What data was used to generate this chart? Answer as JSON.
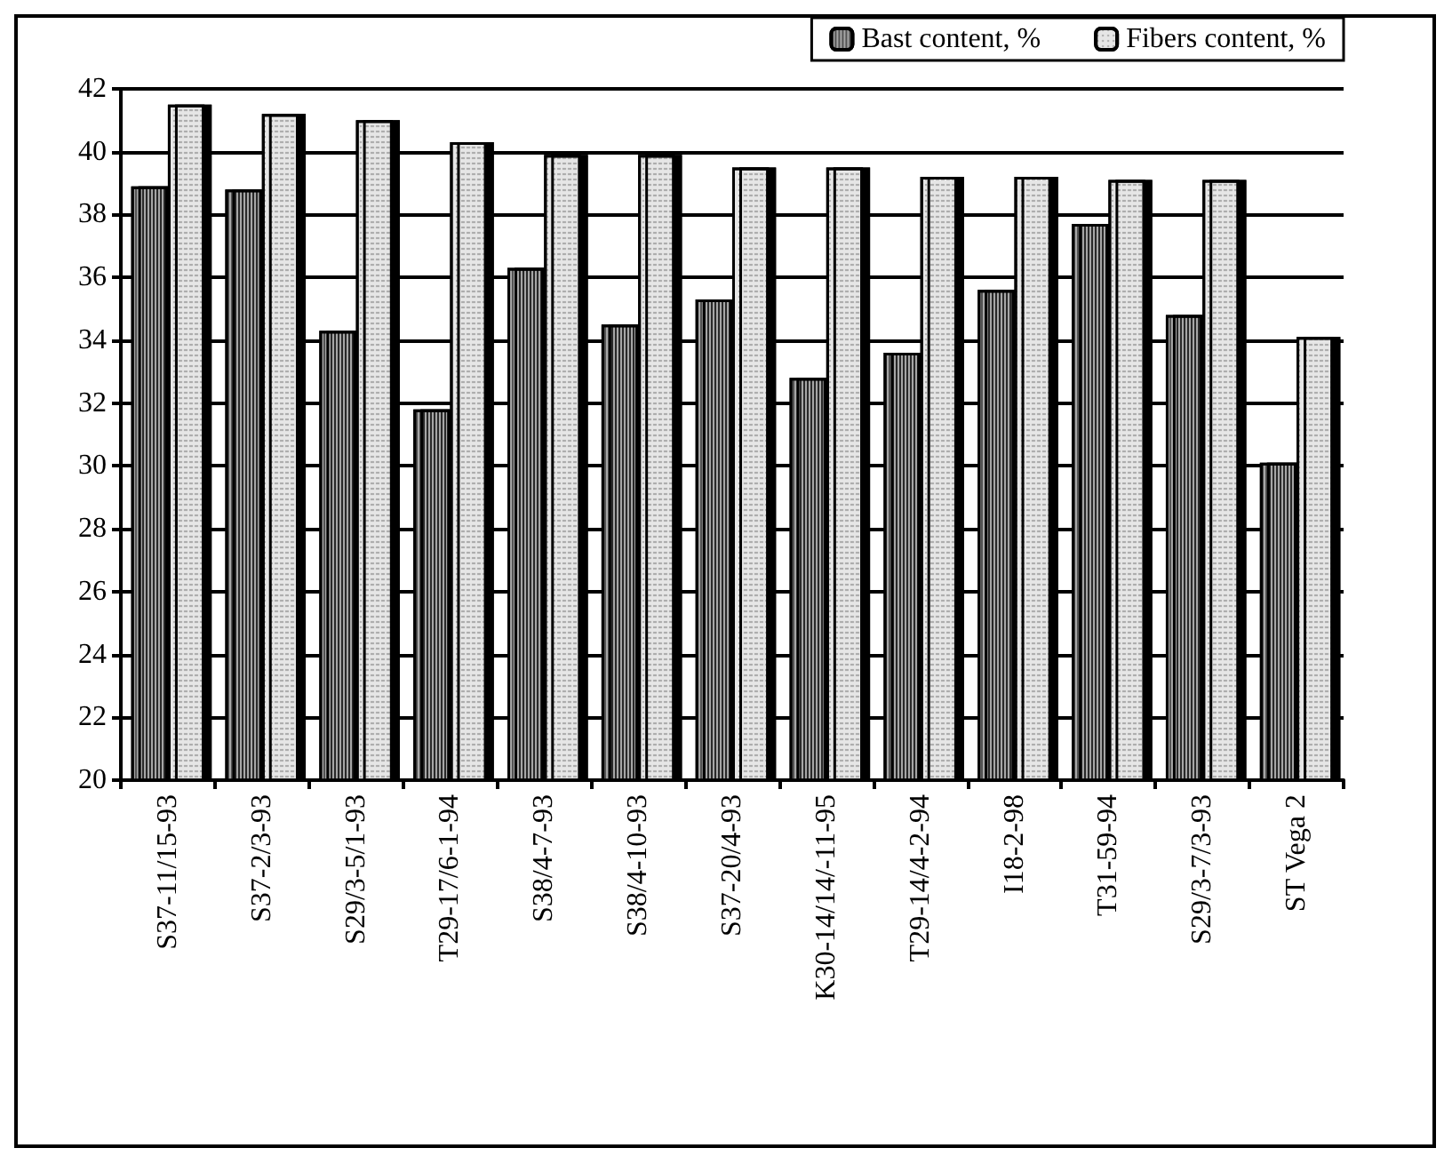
{
  "chart_data": {
    "type": "bar",
    "categories": [
      "S37-11/15-93",
      "S37-2/3-93",
      "S29/3-5/1-93",
      "T29-17/6-1-94",
      "S38/4-7-93",
      "S38/4-10-93",
      "S37-20/4-93",
      "K30-14/14/-11-95",
      "T29-14/4-2-94",
      "I18-2-98",
      "T31-59-94",
      "S29/3-7/3-93",
      "ST Vega 2"
    ],
    "series": [
      {
        "name": "Bast content, %",
        "color": "#a6a6a6",
        "values": [
          38.9,
          38.8,
          34.3,
          31.8,
          36.3,
          34.5,
          35.3,
          32.8,
          33.6,
          35.6,
          37.7,
          34.8,
          30.1
        ]
      },
      {
        "name": "Fibers content, %",
        "color": "#e6e6e6",
        "values": [
          41.5,
          41.2,
          41.0,
          40.3,
          39.9,
          39.9,
          39.5,
          39.5,
          39.2,
          39.2,
          39.1,
          39.1,
          34.1
        ]
      }
    ],
    "ylim": [
      20,
      42
    ],
    "yticks": [
      20,
      22,
      24,
      26,
      28,
      30,
      32,
      34,
      36,
      38,
      40,
      42
    ],
    "grid": "y",
    "legend": "top right"
  }
}
